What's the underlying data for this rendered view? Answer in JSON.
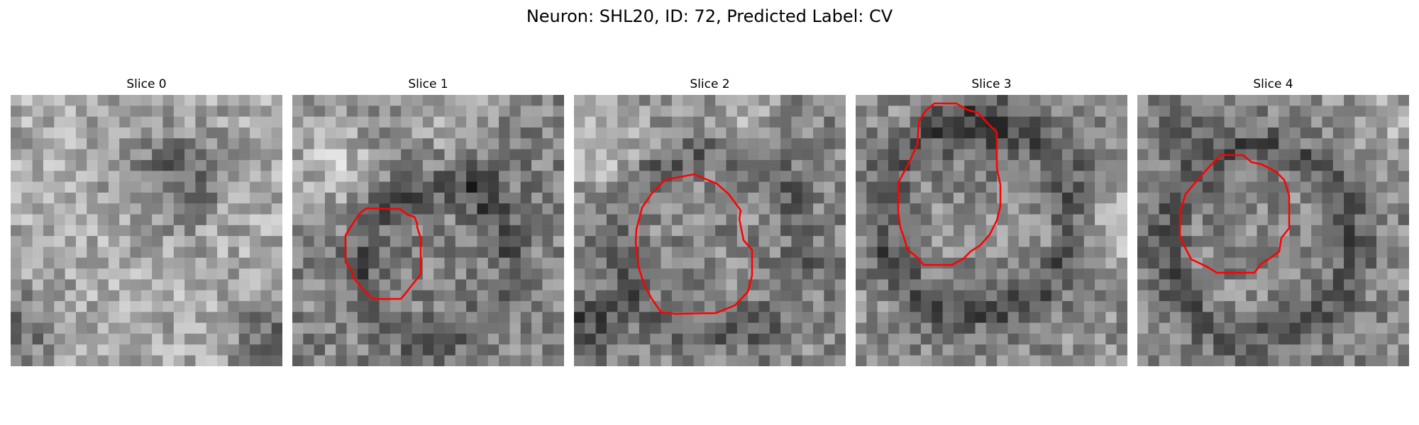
{
  "figure": {
    "title": "Neuron: SHL20, ID: 72, Predicted Label: CV",
    "contour_color": "#ff0000"
  },
  "panels": [
    {
      "title": "Slice 0",
      "image": "grayscale-noise-patch",
      "has_contour": false
    },
    {
      "title": "Slice 1",
      "image": "grayscale-noise-patch",
      "has_contour": true
    },
    {
      "title": "Slice 2",
      "image": "grayscale-noise-patch",
      "has_contour": true
    },
    {
      "title": "Slice 3",
      "image": "grayscale-noise-patch",
      "has_contour": true
    },
    {
      "title": "Slice 4",
      "image": "grayscale-noise-patch",
      "has_contour": true
    }
  ]
}
